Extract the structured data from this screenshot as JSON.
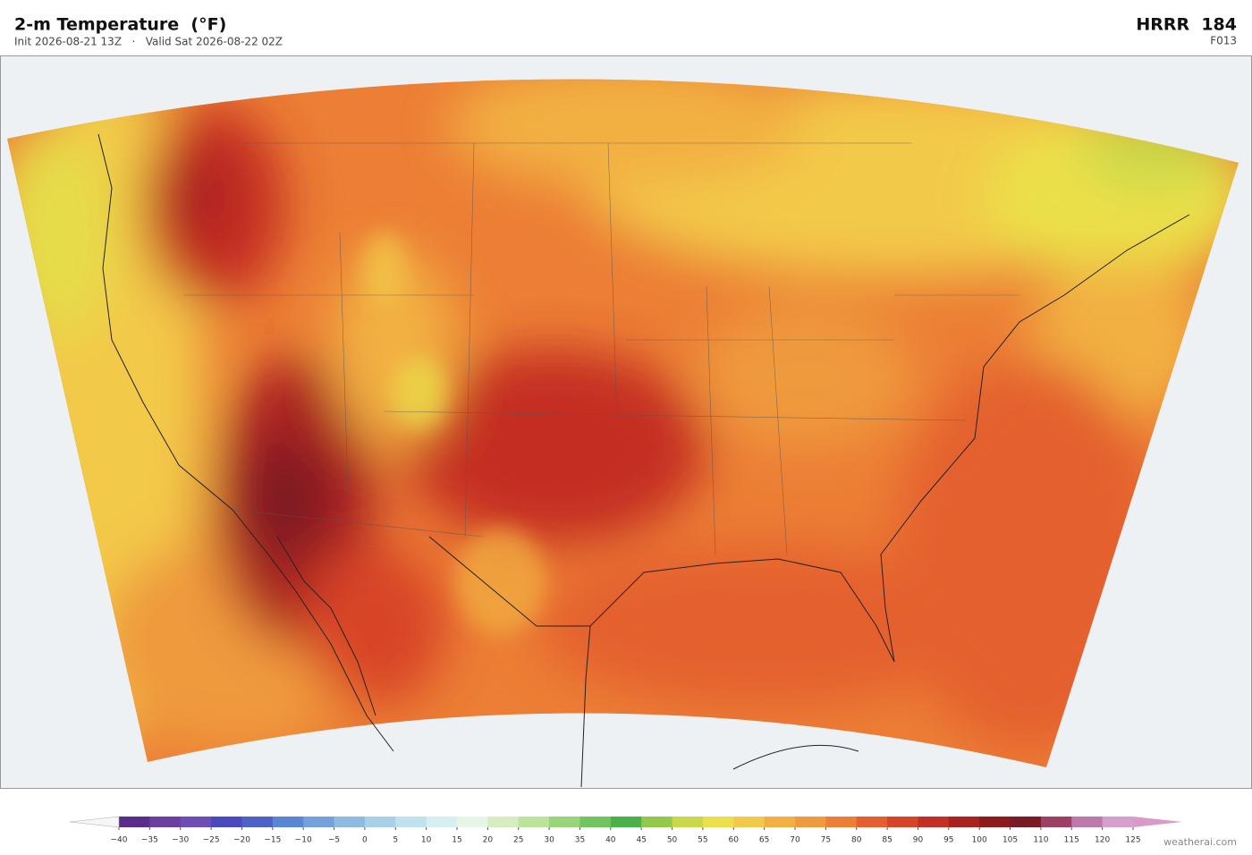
{
  "header": {
    "title": "2-m Temperature  (°F)",
    "subtitle": "Init 2026-08-21 13Z   ·   Valid Sat 2026-08-22 02Z",
    "model": "HRRR  184",
    "forecast_hour": "F013"
  },
  "colorbar": {
    "ticks": [
      {
        "value": -40,
        "label": "−40"
      },
      {
        "value": -35,
        "label": "−35"
      },
      {
        "value": -30,
        "label": "−30"
      },
      {
        "value": -25,
        "label": "−25"
      },
      {
        "value": -20,
        "label": "−20"
      },
      {
        "value": -15,
        "label": "−15"
      },
      {
        "value": -10,
        "label": "−10"
      },
      {
        "value": -5,
        "label": "−5"
      },
      0,
      5,
      10,
      15,
      20,
      25,
      30,
      35,
      40,
      45,
      50,
      55,
      60,
      65,
      70,
      75,
      80,
      85,
      90,
      95,
      100,
      105,
      110,
      115,
      120,
      125
    ],
    "colors": [
      "#5a2d8c",
      "#6a3fa0",
      "#6e4db5",
      "#4a4ac0",
      "#4d62c9",
      "#5a86d6",
      "#74a0dc",
      "#8fbbe0",
      "#a8d0e8",
      "#c0e2ee",
      "#d8eff2",
      "#e6f5e6",
      "#d6edc0",
      "#bde39a",
      "#98d57a",
      "#72c460",
      "#4bb04a",
      "#94c84a",
      "#c9d848",
      "#ebe04a",
      "#f3c94a",
      "#f2b043",
      "#ef9a3c",
      "#ec7e35",
      "#e4602e",
      "#d84428",
      "#c42e24",
      "#aa2220",
      "#8e1a1c",
      "#7a1a24",
      "#9c4066",
      "#bf78aa",
      "#d7a0cc"
    ],
    "extend_colors": [
      "#f6f6f8",
      "#d89ac8"
    ]
  },
  "footer": {
    "credit": "weatherai.com"
  }
}
